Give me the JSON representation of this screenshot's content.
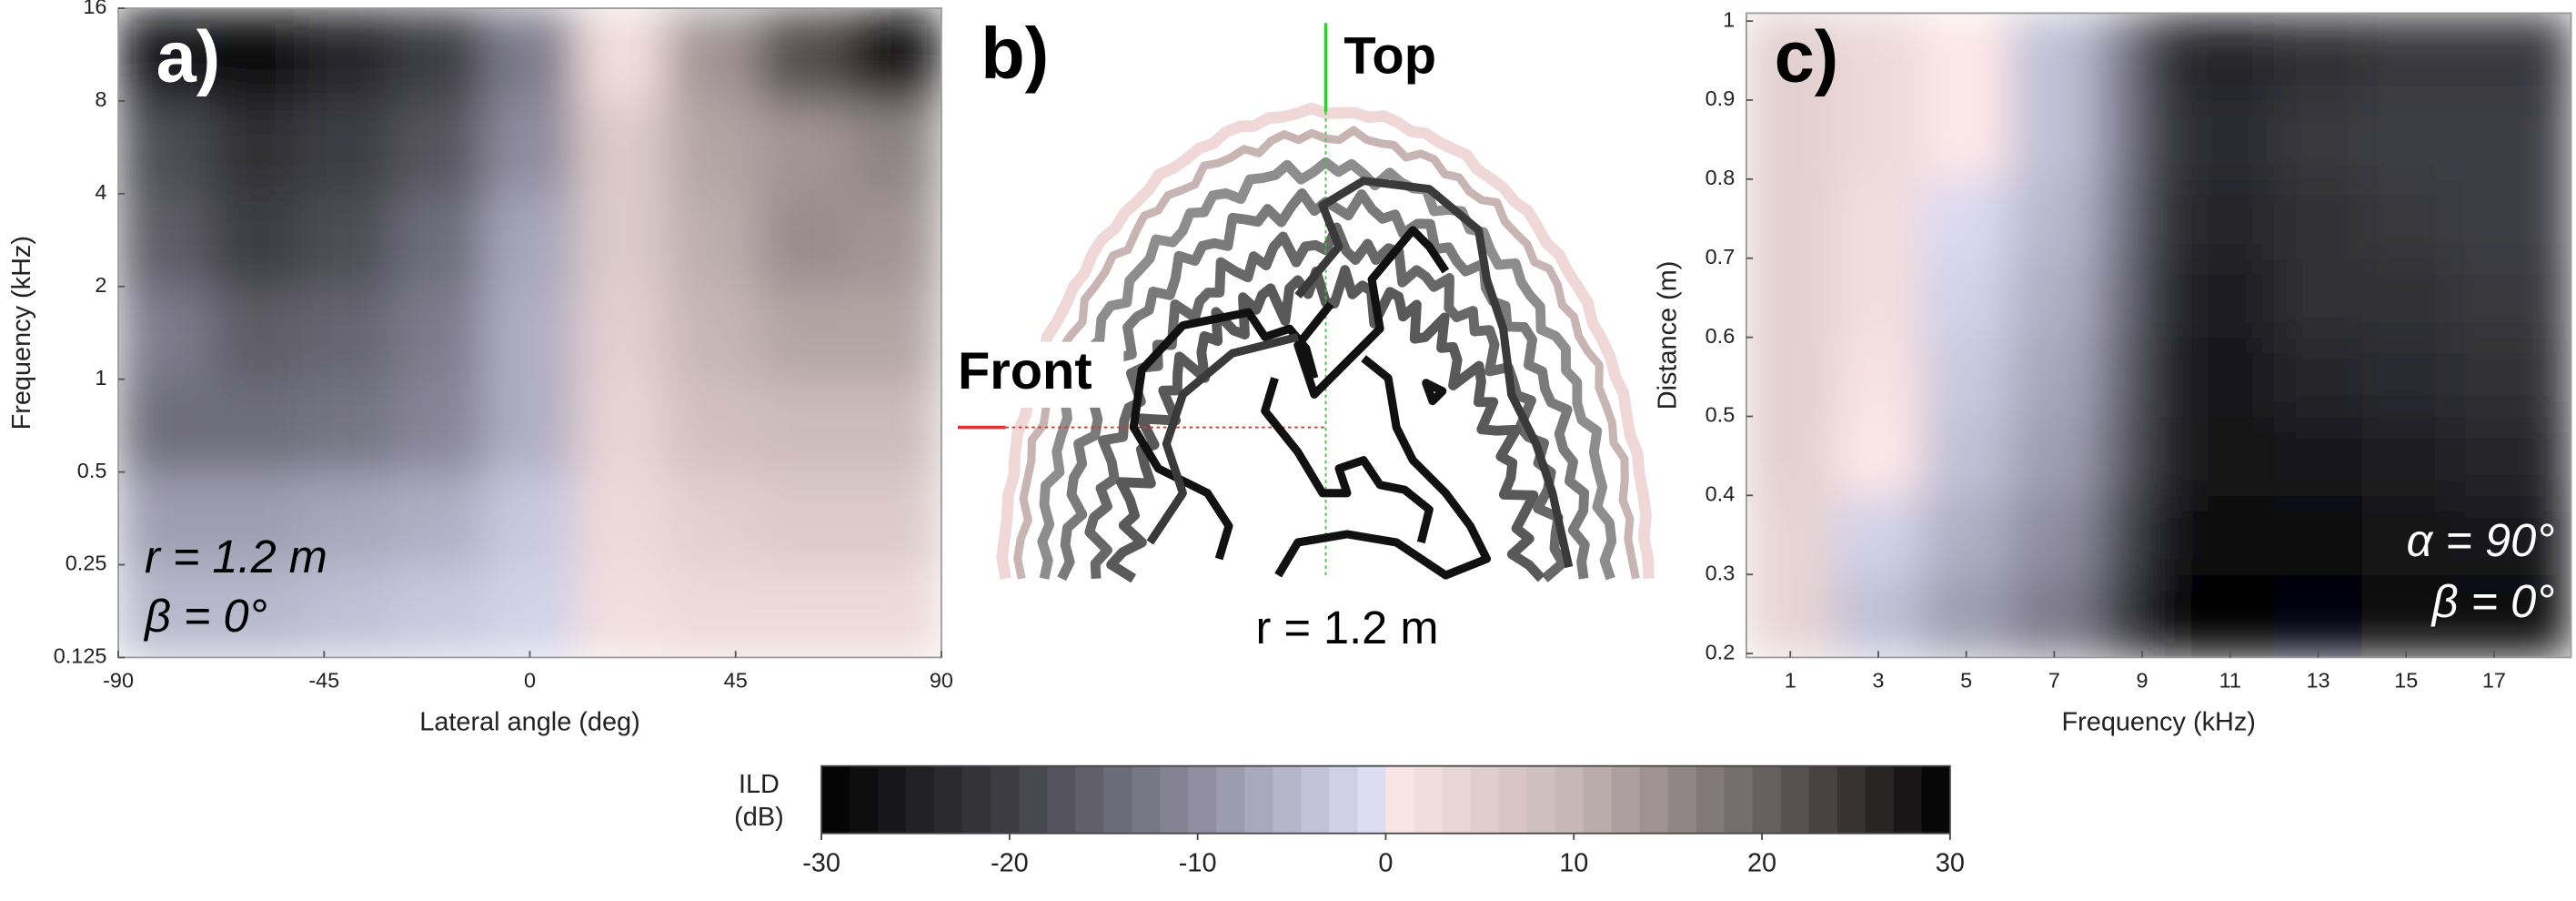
{
  "chart_data": [
    {
      "type": "heatmap",
      "panel_label": "a)",
      "ylabel": "Frequency (kHz)",
      "xlabel": "Lateral angle (deg)",
      "annotations": [
        "r = 1.2 m",
        "β = 0°"
      ],
      "xlim": [
        -90,
        90
      ],
      "xticks": [
        -90,
        -45,
        0,
        45,
        90
      ],
      "ylim": [
        0.125,
        16
      ],
      "yscale": "log",
      "yticks": [
        0.125,
        0.25,
        0.5,
        1,
        2,
        4,
        8,
        16
      ],
      "xbins": [
        -90,
        -70,
        -50,
        -30,
        -10,
        10,
        30,
        50,
        70,
        90
      ],
      "ybins": [
        0.125,
        0.25,
        0.5,
        1,
        2,
        4,
        8,
        16
      ],
      "z": [
        [
          -5,
          -5,
          -4,
          -3,
          -2,
          2,
          3,
          3,
          3
        ],
        [
          -8,
          -8,
          -7,
          -6,
          -3,
          3,
          5,
          6,
          6
        ],
        [
          -14,
          -14,
          -13,
          -11,
          -6,
          4,
          8,
          9,
          9
        ],
        [
          -12,
          -16,
          -15,
          -12,
          -6,
          5,
          10,
          12,
          12
        ],
        [
          -16,
          -20,
          -18,
          -14,
          -7,
          6,
          11,
          15,
          14
        ],
        [
          -18,
          -22,
          -20,
          -17,
          -10,
          6,
          12,
          14,
          16
        ],
        [
          -26,
          -28,
          -24,
          -20,
          -12,
          2,
          14,
          22,
          28
        ]
      ]
    },
    {
      "type": "heatmap",
      "panel_label": "c)",
      "ylabel": "Distance (m)",
      "xlabel": "Frequency (kHz)",
      "annotations": [
        "α = 90°",
        "β = 0°"
      ],
      "xlim": [
        0,
        18.75
      ],
      "xticks": [
        1,
        3,
        5,
        7,
        9,
        11,
        13,
        15,
        17
      ],
      "ylim": [
        0.195,
        1.01
      ],
      "yticks": [
        0.2,
        0.3,
        0.4,
        0.5,
        0.6,
        0.7,
        0.8,
        0.9,
        1
      ],
      "xbins": [
        0,
        2,
        4,
        6,
        8,
        9,
        10,
        12,
        14,
        16,
        18.75
      ],
      "ybins": [
        0.195,
        0.3,
        0.4,
        0.5,
        0.6,
        0.7,
        0.8,
        0.9,
        1.01
      ],
      "z": [
        [
          4,
          -4,
          -8,
          -12,
          -20,
          -28,
          -30,
          -29,
          -28,
          -28
        ],
        [
          4,
          -2,
          -6,
          -10,
          -18,
          -26,
          -28,
          -28,
          -27,
          -26
        ],
        [
          5,
          0,
          -4,
          -8,
          -16,
          -24,
          -27,
          -26,
          -25,
          -24
        ],
        [
          5,
          1,
          -3,
          -7,
          -15,
          -24,
          -26,
          -24,
          -23,
          -22
        ],
        [
          5,
          2,
          -2,
          -6,
          -14,
          -23,
          -25,
          -22,
          -22,
          -21
        ],
        [
          5,
          2,
          -1,
          -5,
          -13,
          -22,
          -24,
          -22,
          -21,
          -20
        ],
        [
          5,
          3,
          0,
          -4,
          -12,
          -21,
          -23,
          -21,
          -20,
          -20
        ],
        [
          5,
          3,
          0,
          -4,
          -12,
          -22,
          -24,
          -22,
          -21,
          -21
        ]
      ]
    },
    {
      "type": "colorbar",
      "label_lines": [
        "ILD",
        "(dB)"
      ],
      "xlim": [
        -30,
        30
      ],
      "xticks": [
        -30,
        -20,
        -10,
        0,
        10,
        20,
        30
      ],
      "colormap": [
        {
          "value": -30,
          "color": "#000000"
        },
        {
          "value": -20,
          "color": "#3e3e44"
        },
        {
          "value": -10,
          "color": "#8e8c9e"
        },
        {
          "value": 0,
          "color": "#e2e2fa"
        },
        {
          "value": 0,
          "color": "#fde8e8"
        },
        {
          "value": 10,
          "color": "#c6b6b6"
        },
        {
          "value": 20,
          "color": "#6a6262"
        },
        {
          "value": 30,
          "color": "#000000"
        }
      ]
    }
  ],
  "panel_b": {
    "panel_label": "b)",
    "top_label": "Top",
    "front_label": "Front",
    "radius_label": "r = 1.2 m"
  }
}
